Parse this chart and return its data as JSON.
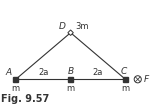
{
  "A": [
    0,
    0
  ],
  "B": [
    2,
    0
  ],
  "C": [
    4,
    0
  ],
  "D": [
    2,
    1.7
  ],
  "F_x": 4.45,
  "F_y": 0.0,
  "mass_A": "m",
  "mass_B": "m",
  "mass_C": "m",
  "mass_D": "3m",
  "label_A": "A",
  "label_B": "B",
  "label_C": "C",
  "label_D": "D",
  "label_F": "F",
  "dist_AB": "2a",
  "dist_BC": "2a",
  "fig_caption": "Fig. 9.57",
  "line_color": "#333333",
  "dot_color": "#333333",
  "bg_color": "#ffffff",
  "font_size_labels": 6.5,
  "font_size_mass": 6.0,
  "font_size_caption": 7.0,
  "sq_half": 0.09,
  "diamond_size": 0.1,
  "circle_r": 0.13,
  "xlim": [
    -0.55,
    5.2
  ],
  "ylim": [
    -0.65,
    2.35
  ]
}
